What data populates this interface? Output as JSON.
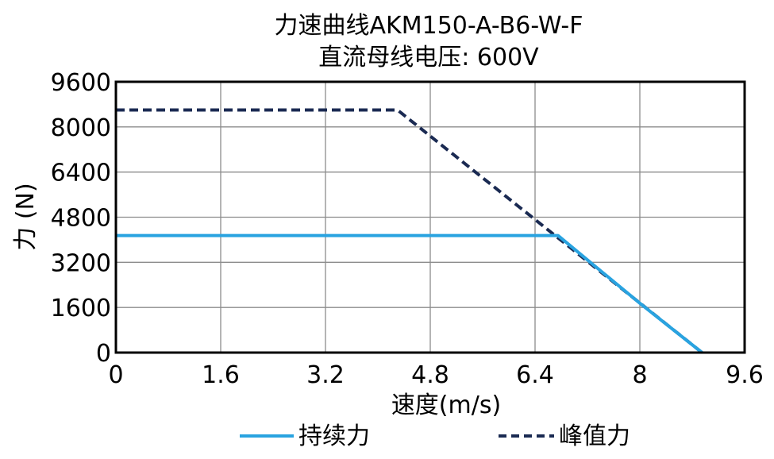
{
  "chart_data": {
    "type": "line",
    "title": "力速曲线AKM150-A-B6-W-F",
    "subtitle": "直流母线电压: 600V",
    "xlabel": "速度(m/s)",
    "ylabel": "力 (N)",
    "xlim": [
      0,
      9.6
    ],
    "ylim": [
      0,
      9600
    ],
    "x_ticks": [
      "0",
      "1.6",
      "3.2",
      "4.8",
      "6.4",
      "8",
      "9.6"
    ],
    "y_ticks": [
      "0",
      "1600",
      "3200",
      "4800",
      "6400",
      "8000",
      "9600"
    ],
    "grid": true,
    "legend_position": "bottom",
    "series": [
      {
        "name": "持续力",
        "style": "solid",
        "color": "#29a3e0",
        "points": [
          {
            "x": 0,
            "y": 4150
          },
          {
            "x": 6.75,
            "y": 4150
          },
          {
            "x": 8.0,
            "y": 1750
          },
          {
            "x": 8.95,
            "y": 0
          }
        ]
      },
      {
        "name": "峰值力",
        "style": "dashed",
        "color": "#1a2a52",
        "points": [
          {
            "x": 0,
            "y": 8600
          },
          {
            "x": 4.3,
            "y": 8600
          },
          {
            "x": 8.95,
            "y": 0
          }
        ]
      }
    ]
  }
}
